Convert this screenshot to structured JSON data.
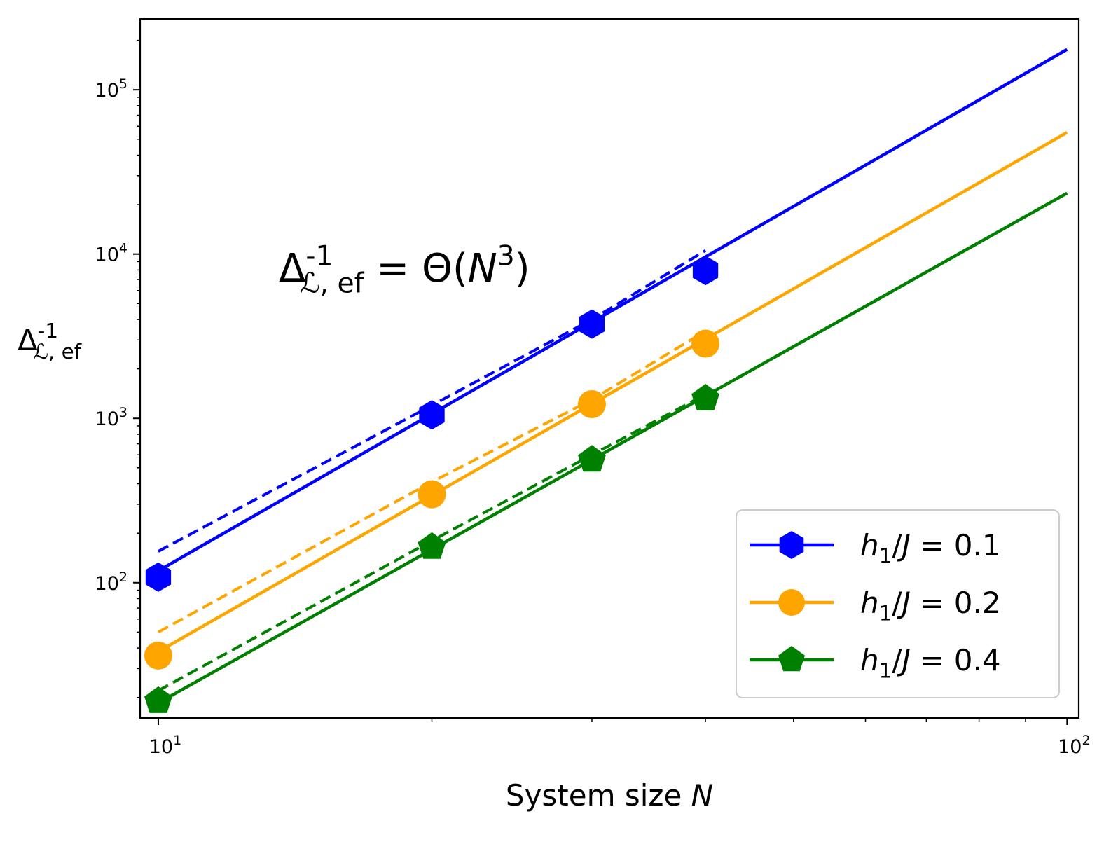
{
  "chart_data": {
    "type": "scatter",
    "xlabel": "System size N",
    "ylabel": "Δ_{ℒ, ef}^{-1}",
    "annotation": "Δ_{ℒ, ef}^{-1} = Θ(N^3)",
    "xscale": "log",
    "yscale": "log",
    "xlim": [
      9.55,
      103
    ],
    "ylim": [
      15,
      270000
    ],
    "xticks": [
      {
        "value": 10,
        "label": "10^1"
      },
      {
        "value": 100,
        "label": "10^2"
      }
    ],
    "yticks": [
      {
        "value": 100,
        "label": "10^2"
      },
      {
        "value": 1000,
        "label": "10^3"
      },
      {
        "value": 10000,
        "label": "10^4"
      },
      {
        "value": 100000,
        "label": "10^5"
      }
    ],
    "grid": false,
    "legend_position": "lower right",
    "series": [
      {
        "name": "h_1/J = 0.1",
        "color": "#0000ff",
        "marker": "hexagon",
        "x": [
          10,
          20,
          30,
          40
        ],
        "y": [
          108,
          1050,
          3750,
          7950
        ],
        "fit_solid": {
          "x": [
            10,
            100
          ],
          "y": [
            118,
            176000
          ]
        },
        "fit_dashed": {
          "x": [
            10,
            20,
            30,
            40
          ],
          "y": [
            155,
            1200,
            4000,
            10500
          ]
        }
      },
      {
        "name": "h_1/J = 0.2",
        "color": "#ffa500",
        "marker": "circle",
        "x": [
          10,
          20,
          30,
          40
        ],
        "y": [
          36,
          345,
          1220,
          2850
        ],
        "fit_solid": {
          "x": [
            10,
            100
          ],
          "y": [
            38,
            55000
          ]
        },
        "fit_dashed": {
          "x": [
            10,
            20,
            30,
            40
          ],
          "y": [
            50,
            410,
            1300,
            3400
          ]
        }
      },
      {
        "name": "h_1/J = 0.4",
        "color": "#008000",
        "marker": "pentagon",
        "x": [
          10,
          20,
          30,
          40
        ],
        "y": [
          19,
          165,
          560,
          1320
        ],
        "fit_solid": {
          "x": [
            10,
            100
          ],
          "y": [
            18.5,
            23500
          ]
        },
        "fit_dashed": {
          "x": [
            10,
            20,
            30,
            40
          ],
          "y": [
            22,
            180,
            600,
            1400
          ]
        }
      }
    ]
  }
}
